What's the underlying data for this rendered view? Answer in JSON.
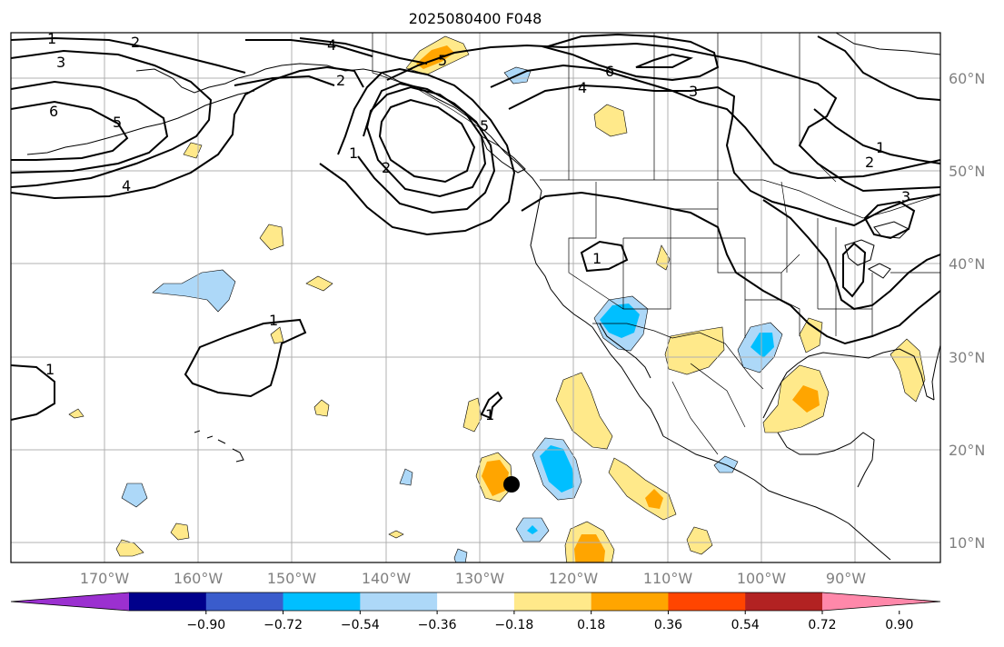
{
  "title": "2025080400 F048",
  "map": {
    "projection": "plate-carree",
    "lon_range": [
      -179,
      -80
    ],
    "lat_range": [
      8,
      66
    ],
    "grid": true
  },
  "longitude_labels": [
    "170°W",
    "160°W",
    "150°W",
    "140°W",
    "130°W",
    "120°W",
    "110°W",
    "100°W",
    "90°W"
  ],
  "latitude_labels": [
    "60°N",
    "50°N",
    "40°N",
    "30°N",
    "20°N",
    "10°N"
  ],
  "contour_labels": [
    "1",
    "2",
    "3",
    "4",
    "5",
    "6",
    "5",
    "4",
    "1",
    "2",
    "5",
    "2",
    "6",
    "4",
    "3",
    "1",
    "2",
    "3",
    "1",
    "1",
    "1",
    "1"
  ],
  "colorbar": {
    "extend": "both",
    "tick_labels": [
      "−0.90",
      "−0.72",
      "−0.54",
      "−0.36",
      "−0.18",
      "0.18",
      "0.36",
      "0.54",
      "0.72",
      "0.90"
    ],
    "colors": [
      "#9b30d0",
      "#00008b",
      "#3a5ccc",
      "#00bfff",
      "#add8f8",
      "#ffffff",
      "#ffe98a",
      "#ffa500",
      "#ff4500",
      "#b22222",
      "#ff88aa"
    ]
  },
  "marker": {
    "label": "storm-center-marker",
    "color": "#000000"
  }
}
